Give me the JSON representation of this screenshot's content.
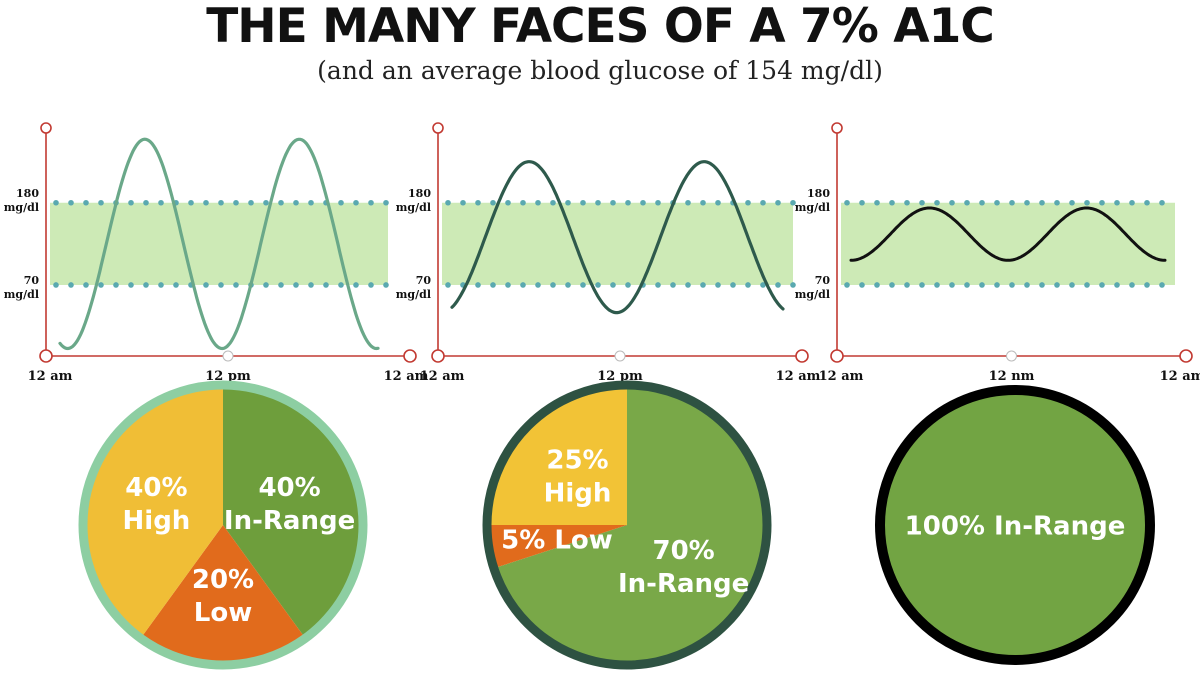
{
  "title": "THE MANY FACES OF A 7% A1C",
  "subtitle": "(and an average blood glucose of 154 mg/dl)",
  "chart_data": [
    {
      "type": "line",
      "name": "panel-1",
      "series_color": "#6aa889",
      "band": {
        "low": 70,
        "high": 180,
        "low_label_value": "70",
        "high_label_value": "180",
        "unit": "mg/dl"
      },
      "x_ticks": [
        "12 am",
        "12 pm",
        "12 am"
      ],
      "y_range": [
        -25,
        280
      ],
      "curve": {
        "start_phase": -0.05,
        "end_phase": 2.01,
        "mean": 125,
        "amplitude": 140
      },
      "pie": {
        "border_color": "#8dcea2",
        "slices": [
          {
            "label": "In-Range",
            "value": 40,
            "text": [
              "40%",
              "In-Range"
            ],
            "color": "#6e9e3c"
          },
          {
            "label": "Low",
            "value": 20,
            "text": [
              "20%",
              "Low"
            ],
            "color": "#e16b1c"
          },
          {
            "label": "High",
            "value": 40,
            "text": [
              "40%",
              "High"
            ],
            "color": "#f0be36"
          }
        ]
      }
    },
    {
      "type": "line",
      "name": "panel-2",
      "series_color": "#2e5a4c",
      "band": {
        "low": 70,
        "high": 180,
        "low_label_value": "70",
        "high_label_value": "180",
        "unit": "mg/dl"
      },
      "x_ticks": [
        "12 am",
        "12 pm",
        "12 am"
      ],
      "y_range": [
        -25,
        280
      ],
      "curve": {
        "start_phase": 0.06,
        "end_phase": 1.95,
        "mean": 134,
        "amplitude": 101
      },
      "pie": {
        "border_color": "#2e5242",
        "slices": [
          {
            "label": "In-Range",
            "value": 70,
            "text": [
              "70%",
              "In-Range"
            ],
            "color": "#79a848"
          },
          {
            "label": "Low",
            "value": 5,
            "text": [
              "5% Low"
            ],
            "color": "#e16b1c"
          },
          {
            "label": "High",
            "value": 25,
            "text": [
              "25%",
              "High"
            ],
            "color": "#f2c336"
          }
        ]
      }
    },
    {
      "type": "line",
      "name": "panel-3",
      "series_color": "#111111",
      "band": {
        "low": 70,
        "high": 180,
        "low_label_value": "70",
        "high_label_value": "180",
        "unit": "mg/dl"
      },
      "x_ticks": [
        "12 am",
        "12 nm",
        "12 am"
      ],
      "y_range": [
        -25,
        280
      ],
      "curve": {
        "start_phase": 0.0,
        "end_phase": 2.0,
        "mean": 138,
        "amplitude": 35
      },
      "pie": {
        "border_color": "#000000",
        "slices": [
          {
            "label": "In-Range",
            "value": 100,
            "text": [
              "100% In-Range"
            ],
            "color": "#72a443"
          }
        ]
      }
    }
  ]
}
